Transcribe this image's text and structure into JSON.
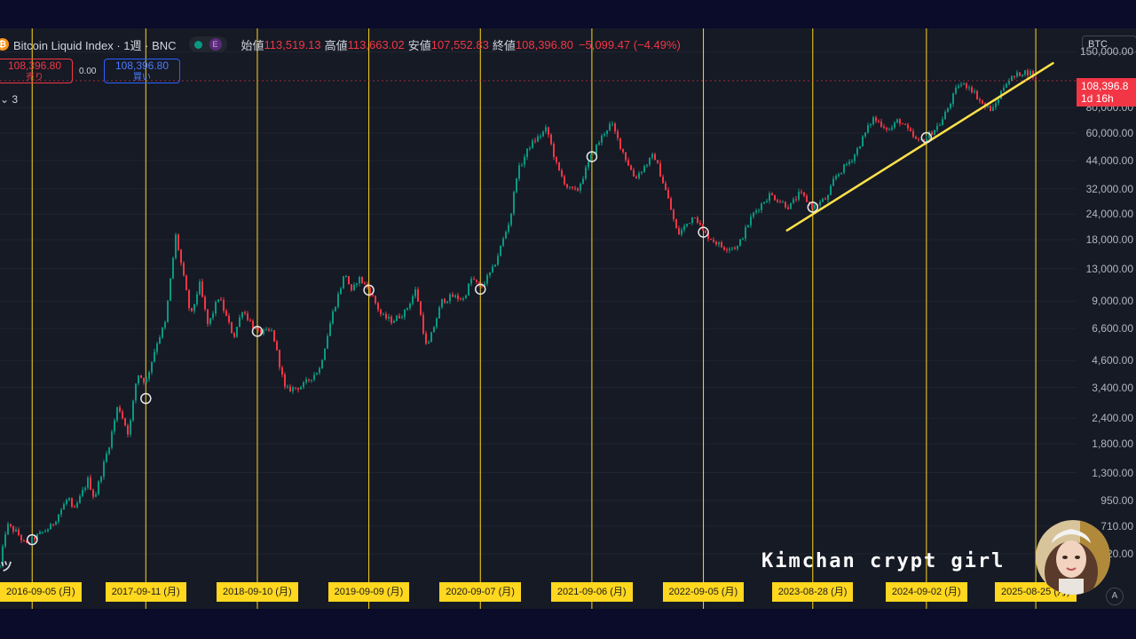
{
  "header": {
    "title": "Bitcoin Liquid Index · 1週 · BNC",
    "e_badge": "E",
    "open_label": "始値",
    "open_value": "113,519.13",
    "high_label": "高値",
    "high_value": "113,663.02",
    "low_label": "安値",
    "low_value": "107,552.83",
    "close_label": "終値",
    "close_value": "108,396.80",
    "change": "−5,099.47 (−4.49%)"
  },
  "trade": {
    "sell_price": "108,396.80",
    "sell_label": "売り",
    "spread": "0.00",
    "buy_price": "108,396.80",
    "buy_label": "買い"
  },
  "indicator_count": "3",
  "symbol_box": "BTC",
  "current_price": {
    "value": "108,396.8",
    "countdown": "1d 16h"
  },
  "price_axis": [
    "150,000.00",
    "80,000.00",
    "60,000.00",
    "44,000.00",
    "32,000.00",
    "24,000.00",
    "18,000.00",
    "13,000.00",
    "9,000.00",
    "6,600.00",
    "4,600.00",
    "3,400.00",
    "2,400.00",
    "1,800.00",
    "1,300.00",
    "950.00",
    "710.00",
    "520.00"
  ],
  "date_labels": [
    "2016-09-05 (月)",
    "2017-09-11 (月)",
    "2018-09-10 (月)",
    "2019-09-09 (月)",
    "2020-09-07 (月)",
    "2021-09-06 (月)",
    "2022-09-05 (月)",
    "2023-08-28 (月)",
    "2024-09-02 (月)",
    "2025-08-25 (月)"
  ],
  "watermark": "Kimchan crypt girl",
  "auto_label": "A",
  "colors": {
    "up": "#089981",
    "down": "#f23645",
    "vline": "#ffd71f",
    "trend": "#ffe14a",
    "bg": "#161a25"
  },
  "chart_data": {
    "type": "candlestick",
    "timeframe": "1W",
    "y_scale": "log",
    "ylim": [
      480,
      160000
    ],
    "xlim": [
      "2016-05-23",
      "2026-01-05"
    ],
    "path_points": [
      {
        "d": "2016-05-23",
        "p": 450
      },
      {
        "d": "2016-06-13",
        "p": 720
      },
      {
        "d": "2016-07-18",
        "p": 660
      },
      {
        "d": "2016-08-15",
        "p": 570
      },
      {
        "d": "2016-09-05",
        "p": 610
      },
      {
        "d": "2016-11-07",
        "p": 710
      },
      {
        "d": "2017-01-02",
        "p": 990
      },
      {
        "d": "2017-01-16",
        "p": 820
      },
      {
        "d": "2017-03-06",
        "p": 1200
      },
      {
        "d": "2017-03-27",
        "p": 970
      },
      {
        "d": "2017-05-15",
        "p": 1800
      },
      {
        "d": "2017-06-12",
        "p": 2800
      },
      {
        "d": "2017-07-17",
        "p": 2000
      },
      {
        "d": "2017-08-14",
        "p": 4000
      },
      {
        "d": "2017-09-11",
        "p": 3600
      },
      {
        "d": "2017-10-16",
        "p": 5600
      },
      {
        "d": "2017-11-13",
        "p": 7000
      },
      {
        "d": "2017-12-18",
        "p": 19000
      },
      {
        "d": "2018-02-05",
        "p": 7500
      },
      {
        "d": "2018-03-05",
        "p": 11000
      },
      {
        "d": "2018-04-02",
        "p": 6800
      },
      {
        "d": "2018-05-07",
        "p": 9500
      },
      {
        "d": "2018-06-25",
        "p": 6000
      },
      {
        "d": "2018-07-23",
        "p": 8200
      },
      {
        "d": "2018-09-10",
        "p": 6300
      },
      {
        "d": "2018-10-29",
        "p": 6400
      },
      {
        "d": "2018-12-10",
        "p": 3300
      },
      {
        "d": "2019-02-04",
        "p": 3450
      },
      {
        "d": "2019-04-01",
        "p": 4200
      },
      {
        "d": "2019-05-13",
        "p": 7800
      },
      {
        "d": "2019-06-24",
        "p": 12500
      },
      {
        "d": "2019-07-15",
        "p": 9800
      },
      {
        "d": "2019-08-05",
        "p": 11800
      },
      {
        "d": "2019-09-09",
        "p": 10300
      },
      {
        "d": "2019-10-21",
        "p": 7600
      },
      {
        "d": "2019-11-25",
        "p": 7200
      },
      {
        "d": "2020-01-06",
        "p": 8000
      },
      {
        "d": "2020-02-10",
        "p": 10300
      },
      {
        "d": "2020-03-16",
        "p": 5200
      },
      {
        "d": "2020-05-04",
        "p": 9000
      },
      {
        "d": "2020-06-08",
        "p": 9500
      },
      {
        "d": "2020-07-13",
        "p": 9200
      },
      {
        "d": "2020-08-10",
        "p": 11700
      },
      {
        "d": "2020-09-07",
        "p": 10400
      },
      {
        "d": "2020-10-19",
        "p": 13000
      },
      {
        "d": "2020-12-14",
        "p": 23000
      },
      {
        "d": "2021-01-04",
        "p": 38000
      },
      {
        "d": "2021-02-15",
        "p": 52000
      },
      {
        "d": "2021-04-12",
        "p": 63000
      },
      {
        "d": "2021-05-17",
        "p": 40000
      },
      {
        "d": "2021-06-21",
        "p": 32000
      },
      {
        "d": "2021-07-19",
        "p": 31000
      },
      {
        "d": "2021-09-06",
        "p": 47000
      },
      {
        "d": "2021-10-18",
        "p": 61000
      },
      {
        "d": "2021-11-08",
        "p": 67000
      },
      {
        "d": "2021-12-20",
        "p": 47000
      },
      {
        "d": "2022-01-24",
        "p": 36000
      },
      {
        "d": "2022-03-28",
        "p": 47000
      },
      {
        "d": "2022-05-09",
        "p": 30000
      },
      {
        "d": "2022-06-13",
        "p": 19000
      },
      {
        "d": "2022-08-08",
        "p": 24000
      },
      {
        "d": "2022-09-05",
        "p": 19500
      },
      {
        "d": "2022-11-07",
        "p": 16500
      },
      {
        "d": "2022-12-26",
        "p": 16600
      },
      {
        "d": "2023-02-13",
        "p": 24000
      },
      {
        "d": "2023-04-10",
        "p": 30000
      },
      {
        "d": "2023-06-12",
        "p": 26000
      },
      {
        "d": "2023-07-17",
        "p": 30500
      },
      {
        "d": "2023-08-28",
        "p": 26000
      },
      {
        "d": "2023-10-16",
        "p": 29000
      },
      {
        "d": "2023-11-06",
        "p": 36000
      },
      {
        "d": "2024-01-08",
        "p": 46000
      },
      {
        "d": "2024-03-11",
        "p": 71000
      },
      {
        "d": "2024-05-06",
        "p": 62000
      },
      {
        "d": "2024-06-03",
        "p": 70000
      },
      {
        "d": "2024-08-05",
        "p": 54000
      },
      {
        "d": "2024-09-02",
        "p": 57000
      },
      {
        "d": "2024-10-21",
        "p": 68000
      },
      {
        "d": "2024-12-16",
        "p": 104000
      },
      {
        "d": "2025-01-20",
        "p": 102000
      },
      {
        "d": "2025-03-10",
        "p": 81000
      },
      {
        "d": "2025-04-07",
        "p": 78000
      },
      {
        "d": "2025-05-19",
        "p": 107000
      },
      {
        "d": "2025-07-14",
        "p": 120000
      },
      {
        "d": "2025-08-11",
        "p": 118000
      },
      {
        "d": "2025-08-25",
        "p": 108400
      }
    ],
    "cycle_dates": [
      "2016-09-05",
      "2017-09-11",
      "2018-09-10",
      "2019-09-09",
      "2020-09-07",
      "2021-09-06",
      "2022-09-05",
      "2023-08-28",
      "2024-09-02",
      "2025-08-25"
    ],
    "marker_points": [
      {
        "d": "2016-09-05",
        "p": 610
      },
      {
        "d": "2017-09-11",
        "p": 3000
      },
      {
        "d": "2018-09-10",
        "p": 6400
      },
      {
        "d": "2019-09-09",
        "p": 10200
      },
      {
        "d": "2020-09-07",
        "p": 10300
      },
      {
        "d": "2021-09-06",
        "p": 46000
      },
      {
        "d": "2022-09-05",
        "p": 19600
      },
      {
        "d": "2023-08-28",
        "p": 26000
      },
      {
        "d": "2024-09-02",
        "p": 57000
      }
    ],
    "trendline": [
      {
        "d": "2023-06-05",
        "p": 20000
      },
      {
        "d": "2025-10-20",
        "p": 132000
      }
    ],
    "last_close": 108396.8
  }
}
